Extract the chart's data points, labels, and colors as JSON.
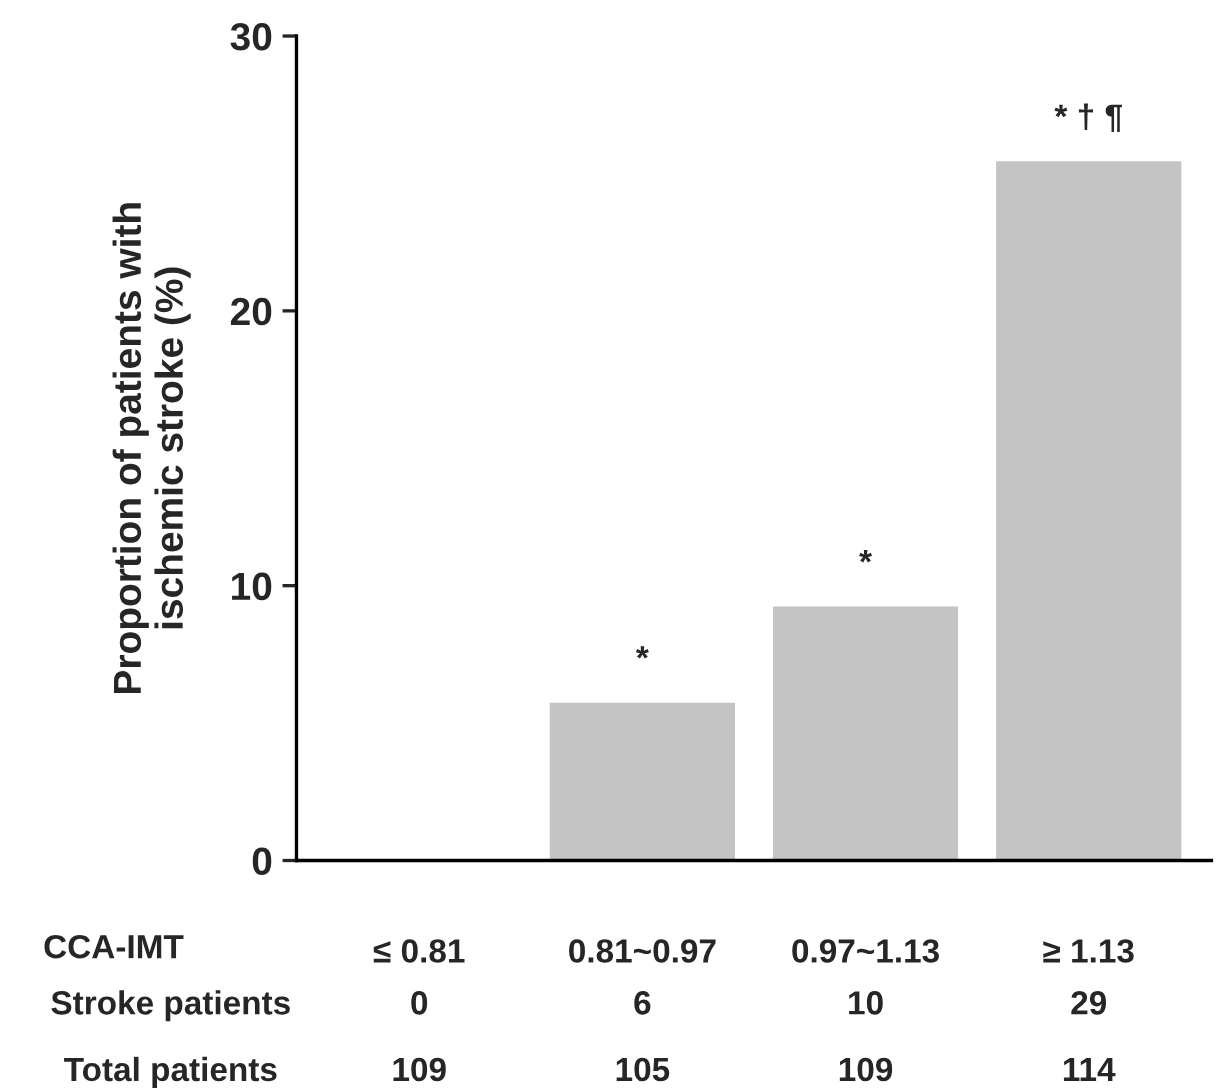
{
  "chart_data": {
    "type": "bar",
    "ylabel": "Proportion of patients with\nischemic stroke (%)",
    "xlabel": "CCA-IMT",
    "categories": [
      "≤ 0.81",
      "0.81~0.97",
      "0.97~1.13",
      "≥ 1.13"
    ],
    "values": [
      0,
      5.7,
      9.2,
      25.4
    ],
    "color": "#c4c4c4",
    "ylim": [
      0,
      30
    ],
    "yticks": [
      0,
      10,
      20,
      30
    ],
    "grid": false,
    "annotations": [
      {
        "text": "*",
        "x": "0.81~0.97",
        "y": 5.7
      },
      {
        "text": "*",
        "x": "0.97~1.13",
        "y": 9.2
      },
      {
        "text": "* † ¶",
        "x": "≥ 1.13",
        "y": 25.4
      },
      "Stroke patients",
      "0",
      "6",
      "10",
      "29",
      "Total patients",
      "109",
      "105",
      "109",
      "114"
    ]
  }
}
